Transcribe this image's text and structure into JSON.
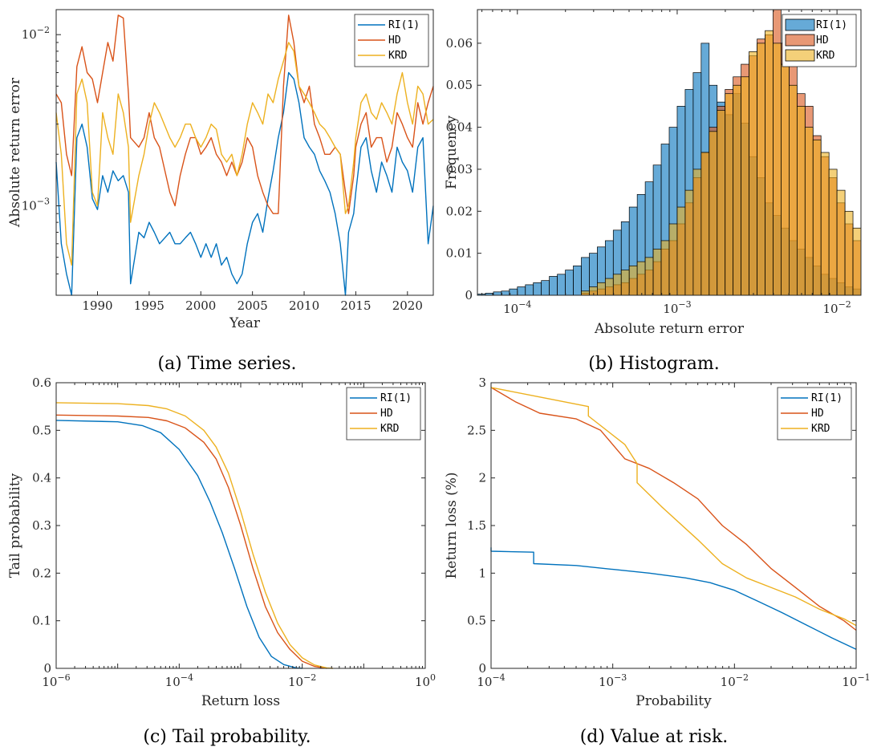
{
  "colors": {
    "ri": "#0072BD",
    "hd": "#D95319",
    "krd": "#EDB120"
  },
  "chart_data": [
    {
      "type": "line",
      "caption": "(a) Time series.",
      "xlabel": "Year",
      "ylabel": "Absolute return error",
      "xlim": [
        1986,
        2022.5
      ],
      "ylim": [
        0.0003,
        0.014
      ],
      "yscale": "log",
      "xticks": [
        1990,
        1995,
        2000,
        2005,
        2010,
        2015,
        2020
      ],
      "xtick_labels": [
        "1990",
        "1995",
        "2000",
        "2005",
        "2010",
        "2015",
        "2020"
      ],
      "yticks": [
        0.001,
        0.01
      ],
      "ytick_labels": [
        [
          "10",
          "−3"
        ],
        [
          "10",
          "−2"
        ]
      ],
      "legend": "top-right",
      "series": [
        {
          "name": "RI(1)",
          "color": "#0072BD",
          "x": [
            1986,
            1986.5,
            1987,
            1987.5,
            1988,
            1988.5,
            1989,
            1989.5,
            1990,
            1990.5,
            1991,
            1991.5,
            1992,
            1992.5,
            1993,
            1993.2,
            1994,
            1994.5,
            1995,
            1995.5,
            1996,
            1997,
            1997.5,
            1998,
            1998.5,
            1999,
            1999.5,
            2000,
            2000.5,
            2001,
            2001.5,
            2002,
            2002.5,
            2003,
            2003.5,
            2004,
            2004.5,
            2005,
            2005.5,
            2006,
            2006.5,
            2007,
            2007.5,
            2008,
            2008.5,
            2009,
            2009.5,
            2010,
            2010.5,
            2011,
            2011.5,
            2012,
            2012.5,
            2013,
            2013.5,
            2014,
            2014.3,
            2014.8,
            2015,
            2015.5,
            2016,
            2016.5,
            2017,
            2017.5,
            2018,
            2018.5,
            2019,
            2019.5,
            2020,
            2020.5,
            2021,
            2021.5,
            2022,
            2022.5
          ],
          "y": [
            0.0018,
            0.0006,
            0.0004,
            0.0003,
            0.0025,
            0.003,
            0.0022,
            0.0011,
            0.00095,
            0.0015,
            0.0012,
            0.0016,
            0.0014,
            0.0015,
            0.0012,
            0.00035,
            0.0007,
            0.00065,
            0.0008,
            0.0007,
            0.0006,
            0.0007,
            0.0006,
            0.0006,
            0.00065,
            0.0007,
            0.0006,
            0.0005,
            0.0006,
            0.0005,
            0.0006,
            0.00045,
            0.0005,
            0.0004,
            0.00035,
            0.0004,
            0.0006,
            0.0008,
            0.0009,
            0.0007,
            0.0011,
            0.0016,
            0.0025,
            0.0035,
            0.006,
            0.0055,
            0.004,
            0.0025,
            0.0022,
            0.002,
            0.0016,
            0.0014,
            0.0012,
            0.0009,
            0.0006,
            0.0003,
            0.0007,
            0.0009,
            0.0012,
            0.0022,
            0.0025,
            0.0016,
            0.0012,
            0.0018,
            0.0015,
            0.0012,
            0.0022,
            0.0018,
            0.0016,
            0.0012,
            0.0022,
            0.0025,
            0.0006,
            0.001
          ]
        },
        {
          "name": "HD",
          "color": "#D95319",
          "x": [
            1986,
            1986.5,
            1987,
            1987.5,
            1988,
            1988.5,
            1989,
            1989.5,
            1990,
            1990.5,
            1991,
            1991.5,
            1992,
            1992.5,
            1993,
            1993.2,
            1994,
            1994.5,
            1995,
            1995.5,
            1996,
            1997,
            1997.5,
            1998,
            1998.5,
            1999,
            1999.5,
            2000,
            2000.5,
            2001,
            2001.5,
            2002,
            2002.5,
            2003,
            2003.5,
            2004,
            2004.5,
            2005,
            2005.5,
            2006,
            2006.5,
            2007,
            2007.5,
            2008,
            2008.5,
            2009,
            2009.5,
            2010,
            2010.5,
            2011,
            2011.5,
            2012,
            2012.5,
            2013,
            2013.5,
            2014,
            2014.3,
            2014.8,
            2015,
            2015.5,
            2016,
            2016.5,
            2017,
            2017.5,
            2018,
            2018.5,
            2019,
            2019.5,
            2020,
            2020.5,
            2021,
            2021.5,
            2022,
            2022.5
          ],
          "y": [
            0.0045,
            0.004,
            0.002,
            0.0015,
            0.0065,
            0.0085,
            0.006,
            0.0055,
            0.004,
            0.006,
            0.009,
            0.007,
            0.013,
            0.0125,
            0.0045,
            0.0025,
            0.0022,
            0.0025,
            0.0035,
            0.0025,
            0.0022,
            0.0012,
            0.001,
            0.0015,
            0.002,
            0.0025,
            0.0025,
            0.002,
            0.0022,
            0.0025,
            0.002,
            0.0018,
            0.0015,
            0.0018,
            0.0015,
            0.0018,
            0.0025,
            0.0022,
            0.0015,
            0.0012,
            0.001,
            0.0009,
            0.0009,
            0.005,
            0.013,
            0.009,
            0.005,
            0.004,
            0.005,
            0.003,
            0.0025,
            0.002,
            0.002,
            0.0022,
            0.002,
            0.0012,
            0.0009,
            0.0015,
            0.0022,
            0.003,
            0.0035,
            0.0022,
            0.0025,
            0.0025,
            0.0018,
            0.0022,
            0.0035,
            0.003,
            0.0025,
            0.0022,
            0.004,
            0.003,
            0.004,
            0.005
          ]
        },
        {
          "name": "KRD",
          "color": "#EDB120",
          "x": [
            1986,
            1986.5,
            1987,
            1987.5,
            1988,
            1988.5,
            1989,
            1989.5,
            1990,
            1990.5,
            1991,
            1991.5,
            1992,
            1992.5,
            1993,
            1993.2,
            1994,
            1994.5,
            1995,
            1995.5,
            1996,
            1997,
            1997.5,
            1998,
            1998.5,
            1999,
            1999.5,
            2000,
            2000.5,
            2001,
            2001.5,
            2002,
            2002.5,
            2003,
            2003.5,
            2004,
            2004.5,
            2005,
            2005.5,
            2006,
            2006.5,
            2007,
            2007.5,
            2008,
            2008.5,
            2009,
            2009.5,
            2010,
            2010.5,
            2011,
            2011.5,
            2012,
            2012.5,
            2013,
            2013.5,
            2014,
            2014.3,
            2014.8,
            2015,
            2015.5,
            2016,
            2016.5,
            2017,
            2017.5,
            2018,
            2018.5,
            2019,
            2019.5,
            2020,
            2020.5,
            2021,
            2021.5,
            2022,
            2022.5
          ],
          "y": [
            0.0035,
            0.002,
            0.0006,
            0.00045,
            0.0045,
            0.0055,
            0.004,
            0.0012,
            0.001,
            0.0035,
            0.0025,
            0.002,
            0.0045,
            0.0035,
            0.0022,
            0.0008,
            0.0015,
            0.002,
            0.003,
            0.004,
            0.0035,
            0.0025,
            0.0022,
            0.0025,
            0.003,
            0.003,
            0.0025,
            0.0022,
            0.0025,
            0.003,
            0.0028,
            0.002,
            0.0018,
            0.002,
            0.0015,
            0.002,
            0.003,
            0.004,
            0.0035,
            0.003,
            0.0045,
            0.004,
            0.0055,
            0.007,
            0.009,
            0.008,
            0.005,
            0.0045,
            0.004,
            0.0035,
            0.003,
            0.0028,
            0.0025,
            0.0022,
            0.002,
            0.0009,
            0.001,
            0.0018,
            0.0025,
            0.004,
            0.0045,
            0.0035,
            0.0032,
            0.004,
            0.0035,
            0.003,
            0.0045,
            0.006,
            0.004,
            0.003,
            0.005,
            0.0045,
            0.003,
            0.0032
          ]
        }
      ]
    },
    {
      "type": "histogram",
      "caption": "(b) Histogram.",
      "xlabel": "Absolute return error",
      "ylabel": "Frequency",
      "xlim_log10": [
        -4.25,
        -1.85
      ],
      "ylim": [
        0,
        0.068
      ],
      "xscale": "log",
      "xticks_log10": [
        -4,
        -3,
        -2
      ],
      "xtick_labels": [
        [
          "10",
          "−4"
        ],
        [
          "10",
          "−3"
        ],
        [
          "10",
          "−2"
        ]
      ],
      "yticks": [
        0,
        0.01,
        0.02,
        0.03,
        0.04,
        0.05,
        0.06
      ],
      "ytick_labels": [
        "0",
        "0.01",
        "0.02",
        "0.03",
        "0.04",
        "0.05",
        "0.06"
      ],
      "bin_start_log10": -4.25,
      "bin_width_log10": 0.05,
      "legend": "top-right",
      "series": [
        {
          "name": "RI(1)",
          "color": "#0072BD",
          "values": [
            0.0003,
            0.0005,
            0.0008,
            0.001,
            0.0015,
            0.002,
            0.0025,
            0.003,
            0.0035,
            0.0045,
            0.005,
            0.006,
            0.007,
            0.009,
            0.01,
            0.0115,
            0.013,
            0.0155,
            0.0175,
            0.021,
            0.024,
            0.027,
            0.031,
            0.036,
            0.04,
            0.045,
            0.049,
            0.053,
            0.06,
            0.05,
            0.046,
            0.043,
            0.048,
            0.041,
            0.033,
            0.028,
            0.022,
            0.019,
            0.016,
            0.013,
            0.011,
            0.009,
            0.007,
            0.005,
            0.004,
            0.003,
            0.002,
            0.0015
          ]
        },
        {
          "name": "HD",
          "color": "#D95319",
          "values": [
            0,
            0,
            0,
            0,
            0,
            0,
            0,
            0,
            0,
            0,
            0,
            0,
            0,
            0.0005,
            0.001,
            0.0015,
            0.002,
            0.0025,
            0.003,
            0.004,
            0.005,
            0.006,
            0.008,
            0.011,
            0.013,
            0.017,
            0.022,
            0.028,
            0.034,
            0.04,
            0.045,
            0.049,
            0.052,
            0.055,
            0.057,
            0.061,
            0.062,
            0.068,
            0.06,
            0.055,
            0.048,
            0.045,
            0.038,
            0.033,
            0.028,
            0.022,
            0.017,
            0.013
          ]
        },
        {
          "name": "KRD",
          "color": "#EDB120",
          "values": [
            0,
            0,
            0,
            0,
            0,
            0,
            0,
            0,
            0,
            0,
            0,
            0,
            0,
            0.001,
            0.002,
            0.003,
            0.004,
            0.005,
            0.006,
            0.007,
            0.008,
            0.009,
            0.011,
            0.013,
            0.017,
            0.021,
            0.025,
            0.03,
            0.034,
            0.039,
            0.044,
            0.048,
            0.05,
            0.052,
            0.058,
            0.06,
            0.063,
            0.06,
            0.055,
            0.05,
            0.045,
            0.04,
            0.037,
            0.034,
            0.03,
            0.025,
            0.02,
            0.016
          ]
        }
      ]
    },
    {
      "type": "line",
      "caption": "(c) Tail probability.",
      "xlabel": "Return loss",
      "ylabel": "Tail probability",
      "xlim_log10": [
        -6,
        0
      ],
      "ylim": [
        0,
        0.6
      ],
      "xscale": "log",
      "xticks_log10": [
        -6,
        -4,
        -2,
        0
      ],
      "xtick_labels": [
        [
          "10",
          "−6"
        ],
        [
          "10",
          "−4"
        ],
        [
          "10",
          "−2"
        ],
        [
          "10",
          "0"
        ]
      ],
      "yticks": [
        0,
        0.1,
        0.2,
        0.3,
        0.4,
        0.5,
        0.6
      ],
      "ytick_labels": [
        "0",
        "0.1",
        "0.2",
        "0.3",
        "0.4",
        "0.5",
        "0.6"
      ],
      "legend": "top-right",
      "series": [
        {
          "name": "RI(1)",
          "color": "#0072BD",
          "x_log10": [
            -6,
            -5,
            -4.6,
            -4.3,
            -4,
            -3.7,
            -3.5,
            -3.3,
            -3.1,
            -2.9,
            -2.7,
            -2.5,
            -2.3,
            -2.1,
            -2
          ],
          "y": [
            0.521,
            0.518,
            0.51,
            0.495,
            0.46,
            0.405,
            0.35,
            0.285,
            0.21,
            0.13,
            0.065,
            0.025,
            0.008,
            0.001,
            0
          ]
        },
        {
          "name": "HD",
          "color": "#D95319",
          "x_log10": [
            -6,
            -5,
            -4.5,
            -4.2,
            -3.9,
            -3.6,
            -3.4,
            -3.2,
            -3,
            -2.8,
            -2.6,
            -2.4,
            -2.2,
            -2,
            -1.8,
            -1.6
          ],
          "y": [
            0.532,
            0.53,
            0.527,
            0.52,
            0.505,
            0.475,
            0.44,
            0.38,
            0.3,
            0.21,
            0.13,
            0.075,
            0.04,
            0.015,
            0.004,
            0
          ]
        },
        {
          "name": "KRD",
          "color": "#EDB120",
          "x_log10": [
            -6,
            -5,
            -4.5,
            -4.2,
            -3.9,
            -3.6,
            -3.4,
            -3.2,
            -3,
            -2.8,
            -2.6,
            -2.4,
            -2.2,
            -2,
            -1.8,
            -1.6,
            -1.5
          ],
          "y": [
            0.558,
            0.556,
            0.552,
            0.545,
            0.53,
            0.5,
            0.465,
            0.41,
            0.33,
            0.24,
            0.16,
            0.095,
            0.05,
            0.022,
            0.007,
            0.001,
            0
          ]
        }
      ]
    },
    {
      "type": "line",
      "caption": "(d) Value at risk.",
      "xlabel": "Probability",
      "ylabel": "Return loss (%)",
      "xlim_log10": [
        -4,
        -1
      ],
      "ylim": [
        0,
        3
      ],
      "xscale": "log",
      "xticks_log10": [
        -4,
        -3,
        -2,
        -1
      ],
      "xtick_labels": [
        [
          "10",
          "−4"
        ],
        [
          "10",
          "−3"
        ],
        [
          "10",
          "−2"
        ],
        [
          "10",
          "−1"
        ]
      ],
      "yticks": [
        0,
        0.5,
        1,
        1.5,
        2,
        2.5,
        3
      ],
      "ytick_labels": [
        "0",
        "0.5",
        "1",
        "1.5",
        "2",
        "2.5",
        "3"
      ],
      "legend": "top-right",
      "series": [
        {
          "name": "RI(1)",
          "color": "#0072BD",
          "x_log10": [
            -4,
            -4,
            -3.65,
            -3.65,
            -3.3,
            -3,
            -2.7,
            -2.4,
            -2.2,
            -2,
            -1.8,
            -1.6,
            -1.4,
            -1.2,
            -1
          ],
          "y": [
            1.27,
            1.23,
            1.22,
            1.1,
            1.08,
            1.04,
            1.0,
            0.95,
            0.9,
            0.82,
            0.7,
            0.58,
            0.45,
            0.32,
            0.2
          ]
        },
        {
          "name": "HD",
          "color": "#D95319",
          "x_log10": [
            -4,
            -3.8,
            -3.6,
            -3.3,
            -3.1,
            -2.9,
            -2.7,
            -2.5,
            -2.3,
            -2.1,
            -1.9,
            -1.7,
            -1.5,
            -1.3,
            -1.1,
            -1
          ],
          "y": [
            2.95,
            2.8,
            2.68,
            2.62,
            2.5,
            2.2,
            2.1,
            1.95,
            1.78,
            1.5,
            1.3,
            1.05,
            0.85,
            0.65,
            0.5,
            0.4
          ]
        },
        {
          "name": "KRD",
          "color": "#EDB120",
          "x_log10": [
            -4,
            -3.6,
            -3.2,
            -3.2,
            -2.9,
            -2.8,
            -2.8,
            -2.6,
            -2.3,
            -2.1,
            -1.9,
            -1.7,
            -1.5,
            -1.3,
            -1.1,
            -1
          ],
          "y": [
            2.95,
            2.85,
            2.75,
            2.65,
            2.35,
            2.15,
            1.95,
            1.7,
            1.35,
            1.1,
            0.95,
            0.85,
            0.75,
            0.62,
            0.52,
            0.45
          ]
        }
      ]
    }
  ]
}
